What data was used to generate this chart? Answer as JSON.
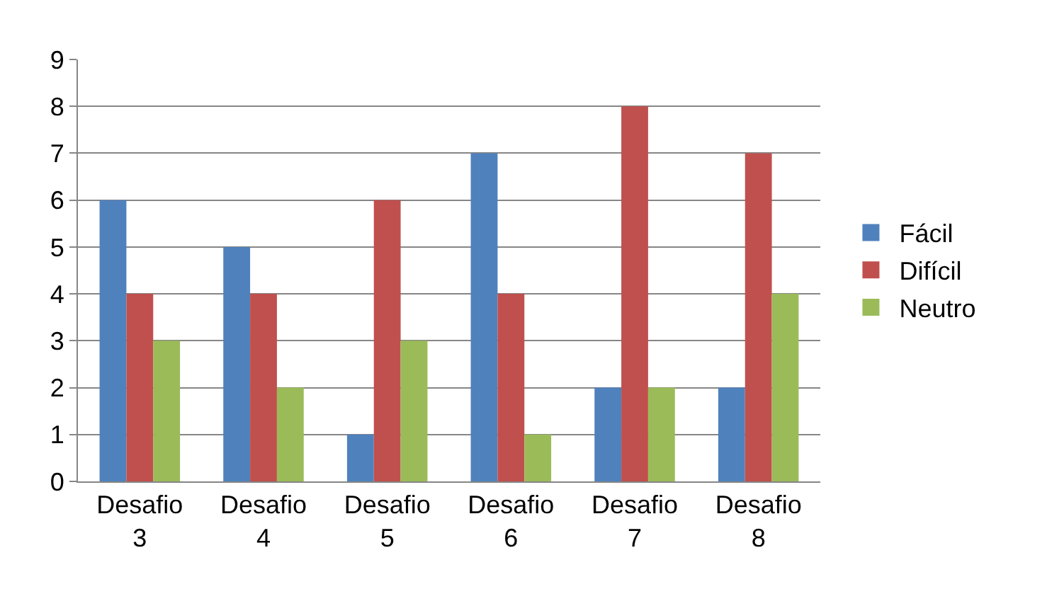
{
  "chart_data": {
    "type": "bar",
    "categories": [
      "Desafio 3",
      "Desafio 4",
      "Desafio 5",
      "Desafio 6",
      "Desafio 7",
      "Desafio 8"
    ],
    "series": [
      {
        "name": "Fácil",
        "color": "#4f81bd",
        "values": [
          6,
          5,
          1,
          7,
          2,
          2
        ]
      },
      {
        "name": "Difícil",
        "color": "#c0504d",
        "values": [
          4,
          4,
          6,
          4,
          8,
          7
        ]
      },
      {
        "name": "Neutro",
        "color": "#9bbb59",
        "values": [
          3,
          2,
          3,
          1,
          2,
          4
        ]
      }
    ],
    "ylim": [
      0,
      9
    ],
    "yticks": [
      0,
      1,
      2,
      3,
      4,
      5,
      6,
      7,
      8,
      9
    ],
    "grid": "y",
    "legend": "right"
  }
}
